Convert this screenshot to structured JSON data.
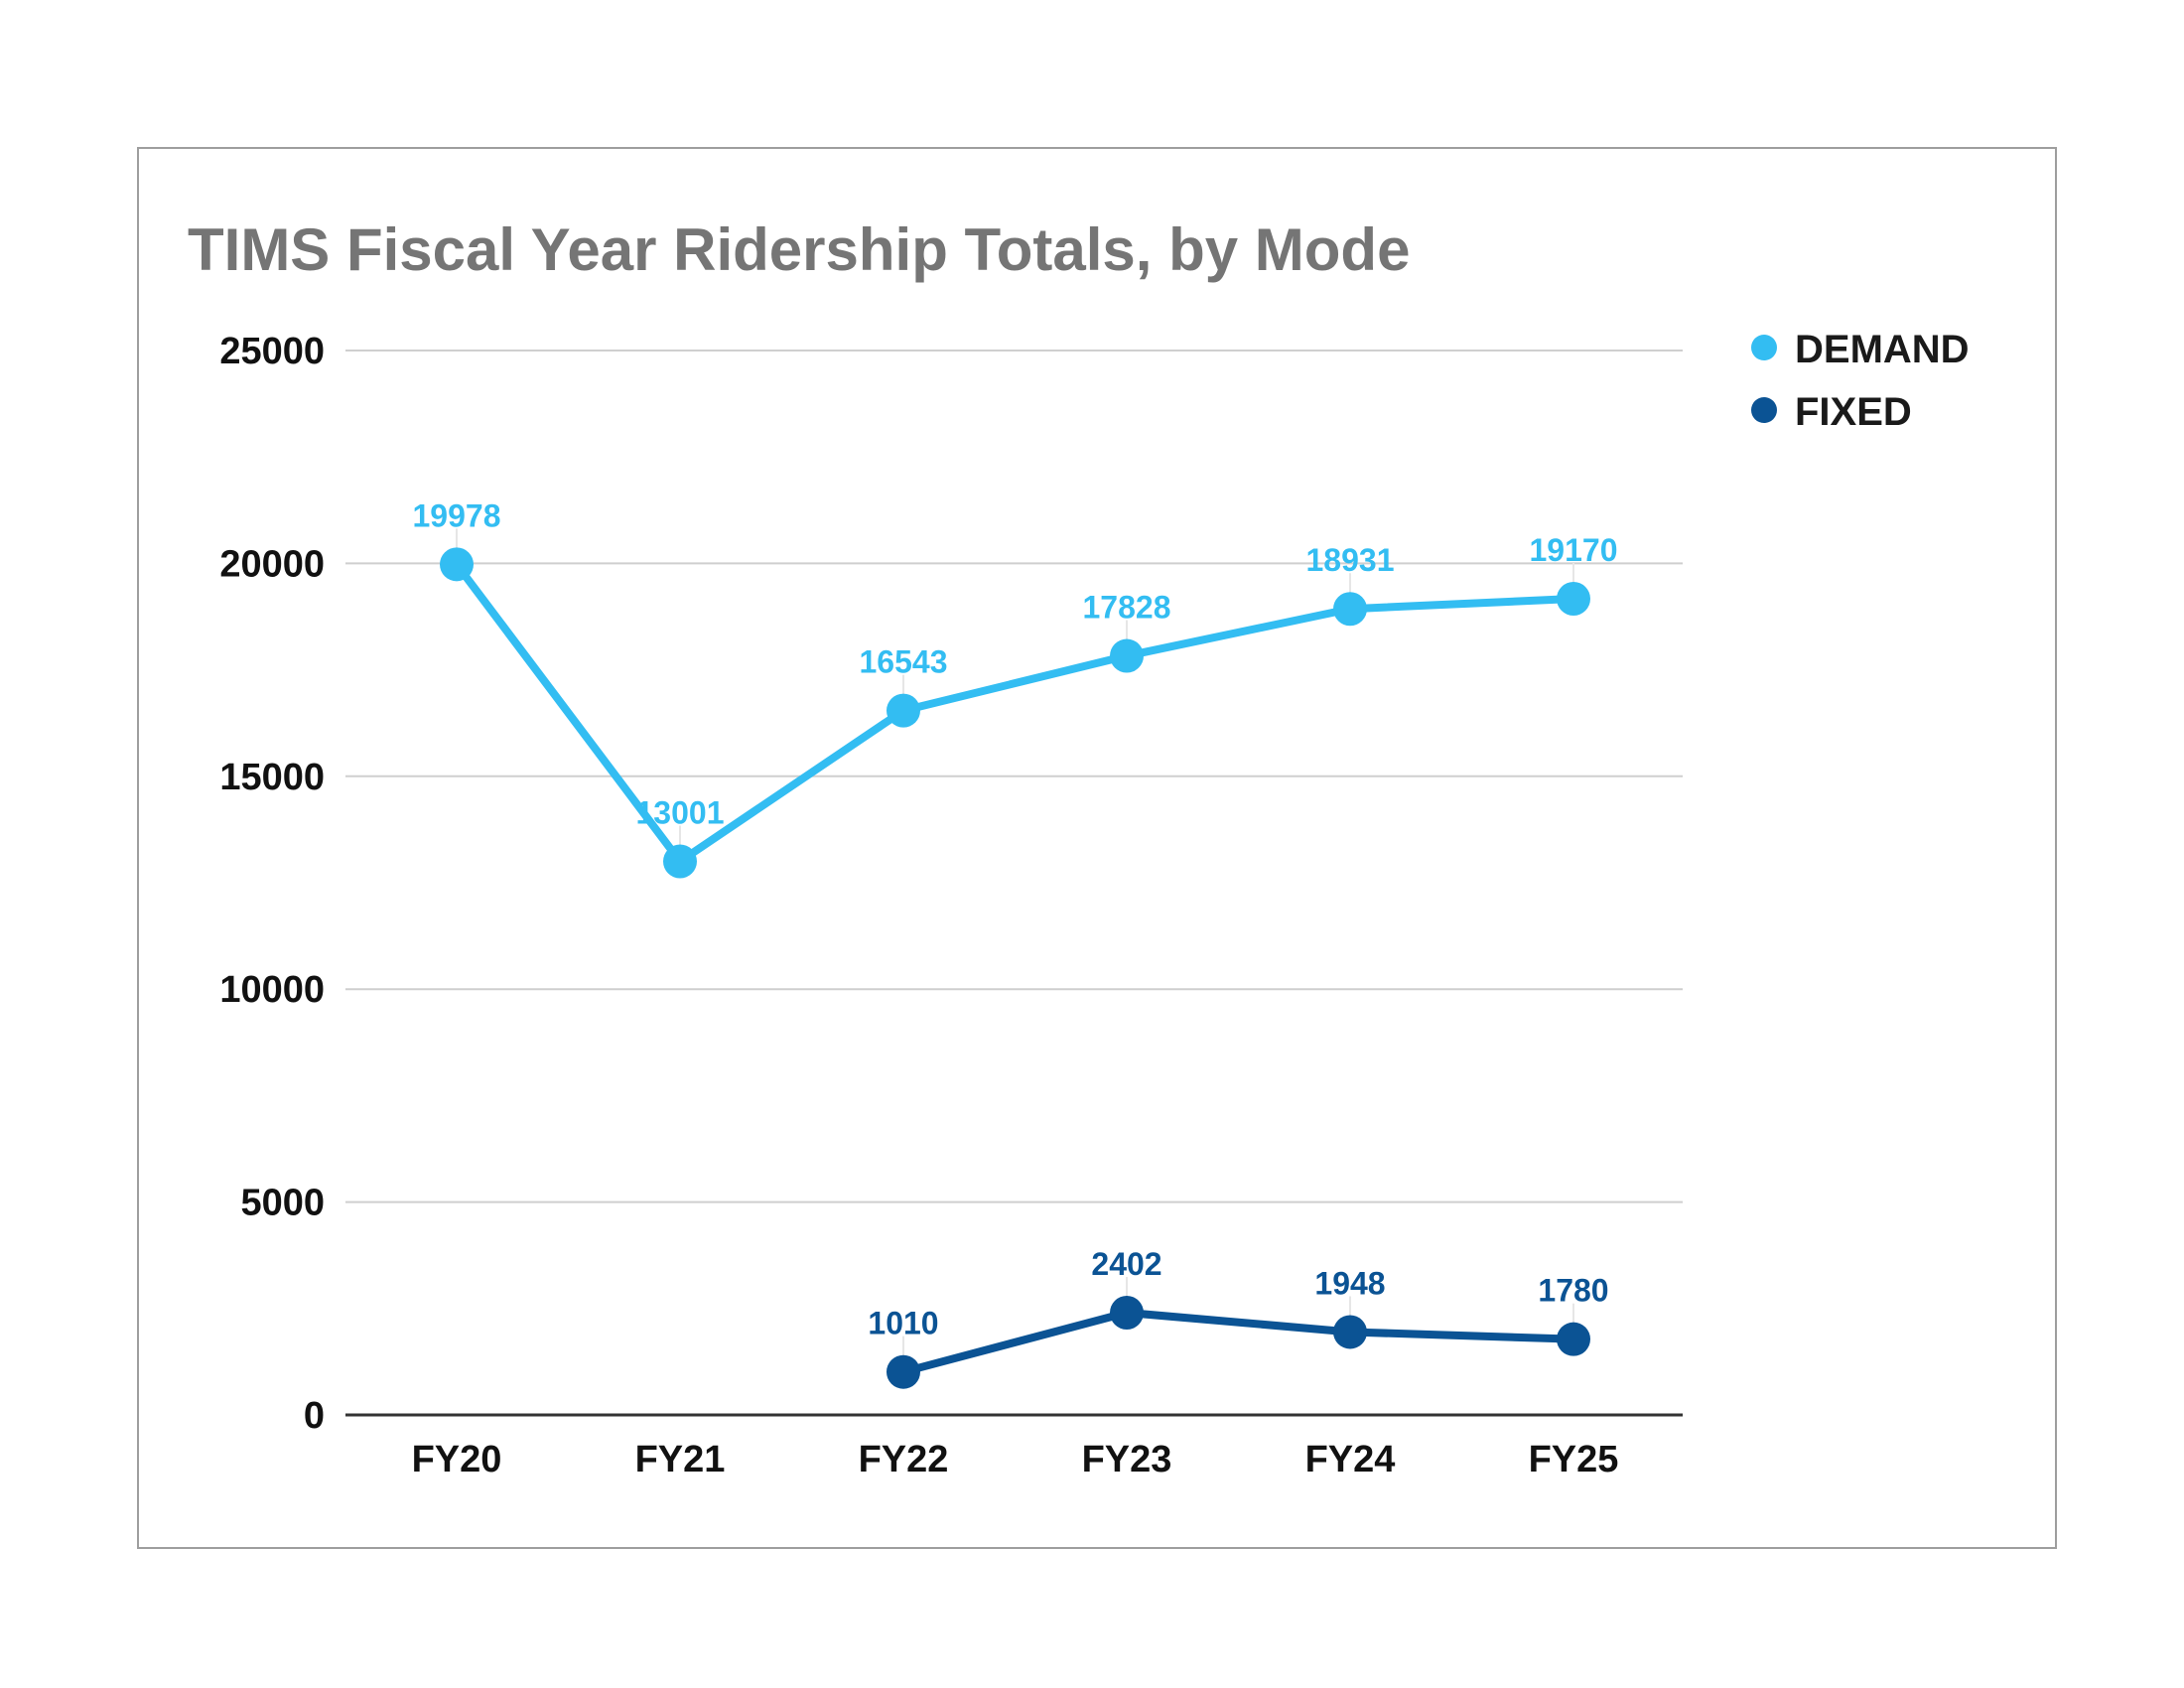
{
  "chart_data": {
    "type": "line",
    "title": "TIMS Fiscal Year Ridership Totals, by Mode",
    "xlabel": "",
    "ylabel": "",
    "categories": [
      "FY20",
      "FY21",
      "FY22",
      "FY23",
      "FY24",
      "FY25"
    ],
    "ylim": [
      0,
      25000
    ],
    "yticks": [
      0,
      5000,
      10000,
      15000,
      20000,
      25000
    ],
    "grid": true,
    "legend_position": "top-right",
    "series": [
      {
        "name": "DEMAND",
        "color": "#33bdf2",
        "values": [
          19978,
          13001,
          16543,
          17828,
          18931,
          19170
        ]
      },
      {
        "name": "FIXED",
        "color": "#0b5394",
        "values": [
          null,
          null,
          1010,
          2402,
          1948,
          1780
        ]
      }
    ]
  }
}
